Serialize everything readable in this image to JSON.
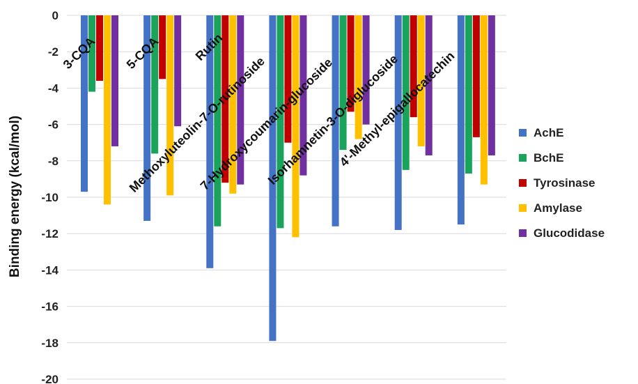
{
  "chart_data": {
    "type": "bar",
    "title": "",
    "ylabel": "Binding energy (kcal/mol)",
    "xlabel": "",
    "ylim": [
      -20,
      0
    ],
    "yticks": [
      0,
      -2,
      -4,
      -6,
      -8,
      -10,
      -12,
      -14,
      -16,
      -18,
      -20
    ],
    "ytick_labels": [
      "0",
      "-2",
      "-4",
      "-6",
      "-8",
      "-10",
      "-12",
      "-14",
      "-16",
      "-18",
      "-20"
    ],
    "grid": true,
    "legend_position": "right",
    "categories": [
      "3-CQA",
      "5-CQA",
      "Rutin",
      "Methoxyluteolin-7-O-rutinoside",
      "7-Hydroxycoumarin-glucoside",
      "Isorhamnetin-3-O-diglucoside",
      "4'-Methyl-epigallocatechin"
    ],
    "series": [
      {
        "name": "AchE",
        "color": "#4472C4",
        "values": [
          -9.7,
          -11.3,
          -13.9,
          -17.9,
          -11.6,
          -11.8,
          -11.5
        ]
      },
      {
        "name": "BchE",
        "color": "#1AA35A",
        "values": [
          -4.2,
          -7.6,
          -11.6,
          -11.7,
          -7.4,
          -8.5,
          -8.7
        ]
      },
      {
        "name": "Tyrosinase",
        "color": "#C00000",
        "values": [
          -3.6,
          -3.5,
          -9.2,
          -7.0,
          -5.3,
          -5.6,
          -6.7
        ]
      },
      {
        "name": "Amylase",
        "color": "#FFC000",
        "values": [
          -10.4,
          -9.9,
          -9.8,
          -12.2,
          -6.8,
          -7.2,
          -9.3
        ]
      },
      {
        "name": "Glucodidase",
        "color": "#7030A0",
        "values": [
          -7.2,
          -6.1,
          -9.3,
          -8.8,
          -6.0,
          -7.7,
          -7.7
        ]
      }
    ]
  }
}
